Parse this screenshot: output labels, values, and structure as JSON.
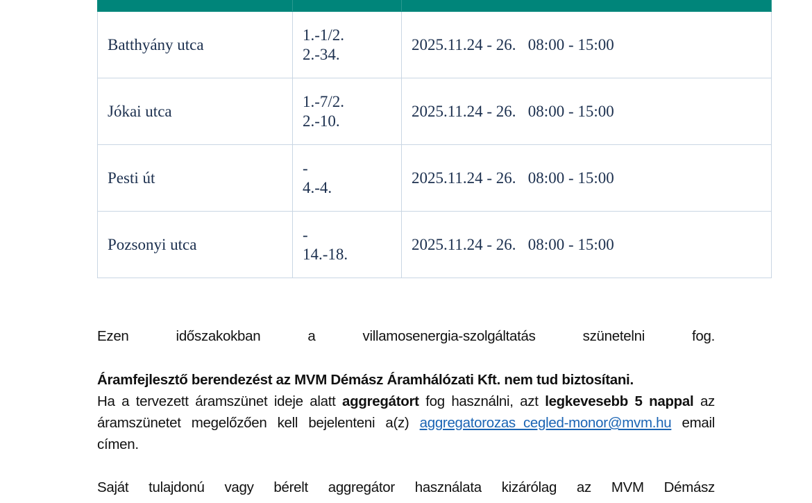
{
  "table": {
    "rows": [
      {
        "street": "Batthyány utca",
        "numbers": [
          "1.-1/2.",
          "2.-34."
        ],
        "when": "2025.11.24 - 26.   08:00 - 15:00"
      },
      {
        "street": "Jókai utca",
        "numbers": [
          "1.-7/2.",
          "2.-10."
        ],
        "when": "2025.11.24 - 26.   08:00 - 15:00"
      },
      {
        "street": "Pesti út",
        "numbers": [
          "-",
          "4.-4."
        ],
        "when": "2025.11.24 - 26.   08:00 - 15:00"
      },
      {
        "street": "Pozsonyi utca",
        "numbers": [
          "-",
          "14.-18."
        ],
        "when": "2025.11.24 - 26.   08:00 - 15:00"
      }
    ],
    "header_color": "#00857a"
  },
  "text": {
    "p1": "Ezen időszakokban a villamosenergia-szolgáltatás szünetelni fog.",
    "p2_bold": "Áramfejlesztő berendezést az MVM Démász Áramhálózati Kft. nem tud biztosítani.",
    "p3": {
      "a": "Ha a tervezett áramszünet ideje alatt ",
      "b_bold": "aggregátort",
      "c": " fog használni, azt ",
      "d_bold": "legkevesebb 5 nappal",
      "e": " az áramszünetet megelőzően kell bejelenteni a(z) ",
      "link": "aggregatorozas_cegled-monor@mvm.hu",
      "f": " email címen."
    },
    "p4": "Saját tulajdonú vagy bérelt aggregátor használata kizárólag az MVM Démász"
  }
}
